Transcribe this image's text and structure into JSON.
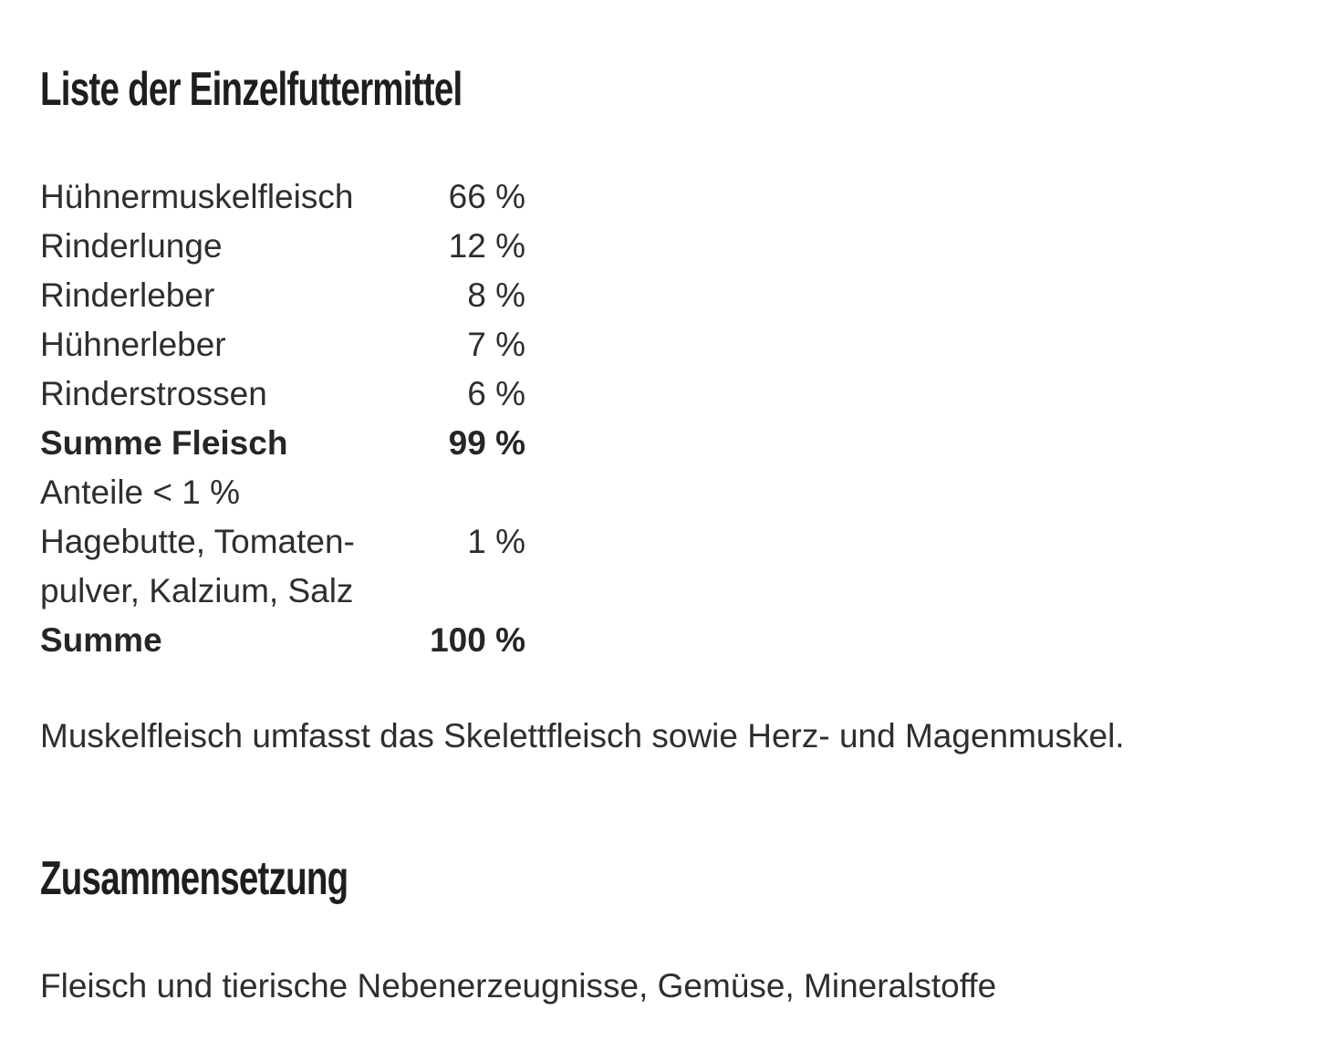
{
  "sections": {
    "ingredients_heading": "Liste der Einzelfuttermittel",
    "composition_heading": "Zusammensetzung"
  },
  "ingredients": {
    "rows": [
      {
        "name": "Hühnermuskelfleisch",
        "value": "66 %"
      },
      {
        "name": "Rinderlunge",
        "value": "12 %"
      },
      {
        "name": "Rinderleber",
        "value": "8 %"
      },
      {
        "name": "Hühnerleber",
        "value": "7 %"
      },
      {
        "name": "Rinderstrossen",
        "value": "6 %"
      }
    ],
    "subtotal": {
      "name": "Summe Fleisch",
      "value": "99 %"
    },
    "minor": {
      "line1": "Anteile < 1 %",
      "line2": "Hagebutte, Tomaten-",
      "line3": "pulver, Kalzium, Salz",
      "value": "1 %"
    },
    "total": {
      "name": "Summe",
      "value": "100 %"
    }
  },
  "note": "Muskelfleisch umfasst das Skelettfleisch sowie Herz- und Magenmuskel.",
  "composition_text": "Fleisch und tierische Nebenerzeugnisse, Gemüse, Mineralstoffe"
}
